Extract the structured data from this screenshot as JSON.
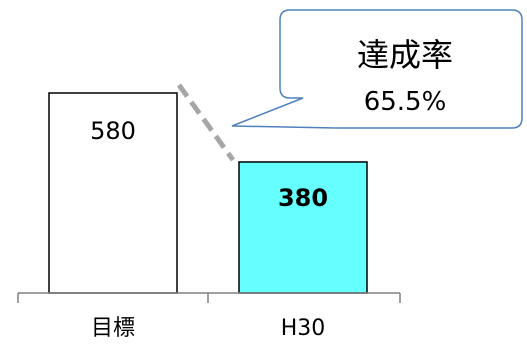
{
  "chart_data": {
    "type": "bar",
    "categories": [
      "目標",
      "H30"
    ],
    "values": [
      580,
      380
    ],
    "data_labels": [
      "580",
      "380"
    ],
    "ylim": [
      0,
      580
    ],
    "grid": false,
    "bar_fill_colors": [
      "#ffffff",
      "#66ffff"
    ],
    "bar_stroke_color": "#000000",
    "axis_color": "#808080",
    "connector_color": "#a6a6a6",
    "annotation": {
      "line1": "達成率",
      "line2": "65.5%",
      "fill": "#ffffff",
      "stroke": "#4f81bd"
    }
  }
}
